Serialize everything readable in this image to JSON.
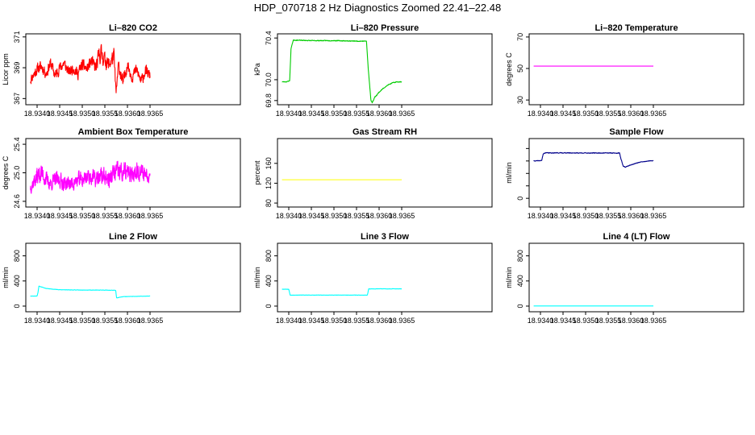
{
  "page_title": "HDP_070718  2 Hz Diagnostics Zoomed 22.41–22.48",
  "chart_data": [
    {
      "type": "line",
      "title": "Li–820 CO2",
      "ylabel": "Licor ppm",
      "color": "#ff0000",
      "xlim": [
        18.93375,
        18.9385
      ],
      "ylim": [
        366.6,
        371.2
      ],
      "x_ticks": [
        18.934,
        18.9345,
        18.935,
        18.9355,
        18.936,
        18.9365
      ],
      "x_tick_labels": [
        "18.9340",
        "18.9345",
        "18.9350",
        "18.9355",
        "18.9360",
        "18.9365"
      ],
      "y_ticks": [
        367,
        369,
        371
      ],
      "y_tick_labels": [
        "367",
        "369",
        "371"
      ],
      "series": [
        {
          "name": "CO2",
          "x": [
            18.93385,
            18.934,
            18.9341,
            18.9342,
            18.9343,
            18.9344,
            18.9345,
            18.9346,
            18.9347,
            18.9348,
            18.9349,
            18.935,
            18.9351,
            18.9352,
            18.9353,
            18.9354,
            18.9355,
            18.9356,
            18.9357,
            18.93575,
            18.9358,
            18.9359,
            18.936,
            18.9361,
            18.9362,
            18.9363,
            18.9364,
            18.9365
          ],
          "values": [
            368.2,
            368.9,
            369.1,
            368.6,
            369.3,
            368.5,
            369.0,
            369.3,
            368.7,
            369.0,
            368.6,
            369.2,
            368.9,
            369.4,
            369.0,
            370.0,
            369.5,
            369.2,
            369.8,
            367.3,
            369.2,
            368.0,
            369.2,
            368.4,
            368.9,
            368.1,
            368.8,
            368.5
          ],
          "amplitude": [
            0.45,
            0.5,
            0.5,
            0.45,
            0.5,
            0.5,
            0.5,
            0.5,
            0.45,
            0.5,
            0.5,
            0.5,
            0.5,
            0.55,
            0.6,
            0.9,
            0.7,
            0.6,
            0.7,
            0.4,
            0.5,
            0.6,
            0.5,
            0.5,
            0.5,
            0.5,
            0.5,
            0.4
          ],
          "noise_seed": 11
        }
      ]
    },
    {
      "type": "line",
      "title": "Li–820 Pressure",
      "ylabel": "kPa",
      "color": "#00cc00",
      "xlim": [
        18.93375,
        18.9385
      ],
      "ylim": [
        69.76,
        70.44
      ],
      "x_ticks": [
        18.934,
        18.9345,
        18.935,
        18.9355,
        18.936,
        18.9365
      ],
      "x_tick_labels": [
        "18.9340",
        "18.9345",
        "18.9350",
        "18.9355",
        "18.9360",
        "18.9365"
      ],
      "y_ticks": [
        69.8,
        70.0,
        70.4
      ],
      "y_tick_labels": [
        "69.8",
        "70.0",
        "70.4"
      ],
      "series": [
        {
          "name": "Pressure",
          "x": [
            18.93385,
            18.93395,
            18.93402,
            18.93405,
            18.9341,
            18.9345,
            18.935,
            18.9355,
            18.93572,
            18.93576,
            18.93582,
            18.93585,
            18.9359,
            18.936,
            18.9361,
            18.9362,
            18.9363,
            18.9364,
            18.9365
          ],
          "values": [
            69.98,
            69.98,
            69.99,
            70.3,
            70.38,
            70.375,
            70.375,
            70.37,
            70.37,
            70.1,
            69.8,
            69.78,
            69.83,
            69.88,
            69.92,
            69.95,
            69.97,
            69.98,
            69.98
          ],
          "amplitude": [
            0.004,
            0.004,
            0.004,
            0.004,
            0.005,
            0.005,
            0.005,
            0.005,
            0.005,
            0.006,
            0.006,
            0.006,
            0.006,
            0.006,
            0.005,
            0.005,
            0.005,
            0.005,
            0.005
          ],
          "noise_seed": 23
        }
      ]
    },
    {
      "type": "line",
      "title": "Li–820 Temperature",
      "ylabel": "degrees C",
      "color": "#ff00ff",
      "xlim": [
        18.93375,
        18.9385
      ],
      "ylim": [
        27,
        72
      ],
      "x_ticks": [
        18.934,
        18.9345,
        18.935,
        18.9355,
        18.936,
        18.9365
      ],
      "x_tick_labels": [
        "18.9340",
        "18.9345",
        "18.9350",
        "18.9355",
        "18.9360",
        "18.9365"
      ],
      "y_ticks": [
        30,
        50,
        70
      ],
      "y_tick_labels": [
        "30",
        "50",
        "70"
      ],
      "series": [
        {
          "name": "Temperature",
          "x": [
            18.93385,
            18.9365
          ],
          "values": [
            51.5,
            51.5
          ],
          "amplitude": [
            0,
            0
          ],
          "noise_seed": 1
        }
      ]
    },
    {
      "type": "line",
      "title": "Ambient Box Temperature",
      "ylabel": "degrees C",
      "color": "#ff00ff",
      "xlim": [
        18.93375,
        18.9385
      ],
      "ylim": [
        24.52,
        25.48
      ],
      "x_ticks": [
        18.934,
        18.9345,
        18.935,
        18.9355,
        18.936,
        18.9365
      ],
      "x_tick_labels": [
        "18.9340",
        "18.9345",
        "18.9350",
        "18.9355",
        "18.9360",
        "18.9365"
      ],
      "y_ticks": [
        24.6,
        25.0,
        25.4
      ],
      "y_tick_labels": [
        "24.6",
        "25.0",
        "25.4"
      ],
      "series": [
        {
          "name": "Ambient",
          "x": [
            18.93385,
            18.934,
            18.9341,
            18.9342,
            18.9343,
            18.9344,
            18.9345,
            18.9346,
            18.9347,
            18.9348,
            18.9349,
            18.935,
            18.9351,
            18.9352,
            18.9353,
            18.9354,
            18.9355,
            18.9356,
            18.9357,
            18.9358,
            18.9359,
            18.936,
            18.9361,
            18.9362,
            18.9363,
            18.9364,
            18.9365
          ],
          "values": [
            24.8,
            24.95,
            25.0,
            24.9,
            24.85,
            24.9,
            24.9,
            24.85,
            24.85,
            24.85,
            24.9,
            24.9,
            24.95,
            24.95,
            24.9,
            24.95,
            24.95,
            24.9,
            25.0,
            25.0,
            25.0,
            25.0,
            24.95,
            25.05,
            25.0,
            25.0,
            24.95
          ],
          "amplitude": [
            0.12,
            0.18,
            0.18,
            0.16,
            0.14,
            0.15,
            0.15,
            0.14,
            0.14,
            0.14,
            0.15,
            0.15,
            0.16,
            0.16,
            0.15,
            0.17,
            0.16,
            0.16,
            0.2,
            0.22,
            0.22,
            0.18,
            0.16,
            0.18,
            0.16,
            0.15,
            0.12
          ],
          "noise_seed": 37
        }
      ]
    },
    {
      "type": "line",
      "title": "Gas Stream RH",
      "ylabel": "percent",
      "color": "#ffff00",
      "xlim": [
        18.93375,
        18.9385
      ],
      "ylim": [
        72,
        210
      ],
      "x_ticks": [
        18.934,
        18.9345,
        18.935,
        18.9355,
        18.936,
        18.9365
      ],
      "x_tick_labels": [
        "18.9340",
        "18.9345",
        "18.9350",
        "18.9355",
        "18.9360",
        "18.9365"
      ],
      "y_ticks": [
        80,
        120,
        160
      ],
      "y_tick_labels": [
        "80",
        "120",
        "160"
      ],
      "series": [
        {
          "name": "RH",
          "x": [
            18.93385,
            18.9365
          ],
          "values": [
            127,
            127
          ],
          "amplitude": [
            0,
            0
          ],
          "noise_seed": 2
        }
      ]
    },
    {
      "type": "line",
      "title": "Sample Flow",
      "ylabel": "ml/min",
      "color": "#00008b",
      "xlim": [
        18.93375,
        18.9385
      ],
      "ylim": [
        -70,
        480
      ],
      "x_ticks": [
        18.934,
        18.9345,
        18.935,
        18.9355,
        18.936,
        18.9365
      ],
      "x_tick_labels": [
        "18.9340",
        "18.9345",
        "18.9350",
        "18.9355",
        "18.9360",
        "18.9365"
      ],
      "y_ticks": [
        0,
        100,
        200,
        300,
        400
      ],
      "y_tick_labels": [
        "0",
        "",
        "",
        "",
        ""
      ],
      "series": [
        {
          "name": "Sample Flow",
          "x": [
            18.93385,
            18.93398,
            18.93403,
            18.93406,
            18.9341,
            18.9345,
            18.935,
            18.9355,
            18.93575,
            18.93578,
            18.93583,
            18.93588,
            18.9359,
            18.936,
            18.9361,
            18.9362,
            18.9363,
            18.9364,
            18.9365
          ],
          "values": [
            300,
            302,
            305,
            355,
            365,
            365,
            364,
            364,
            364,
            320,
            260,
            250,
            255,
            268,
            280,
            290,
            295,
            300,
            302
          ],
          "amplitude": [
            3,
            3,
            3,
            3,
            4,
            4,
            4,
            4,
            4,
            4,
            4,
            4,
            3,
            3,
            3,
            3,
            3,
            3,
            3
          ],
          "noise_seed": 41
        }
      ]
    },
    {
      "type": "line",
      "title": "Line 2 Flow",
      "ylabel": "ml/min",
      "color": "#00ffff",
      "xlim": [
        18.93375,
        18.9385
      ],
      "ylim": [
        -90,
        1000
      ],
      "x_ticks": [
        18.934,
        18.9345,
        18.935,
        18.9355,
        18.936,
        18.9365
      ],
      "x_tick_labels": [
        "18.9340",
        "18.9345",
        "18.9350",
        "18.9355",
        "18.9360",
        "18.9365"
      ],
      "y_ticks": [
        0,
        400,
        800
      ],
      "y_tick_labels": [
        "0",
        "400",
        "800"
      ],
      "series": [
        {
          "name": "Line 2",
          "x": [
            18.93385,
            18.934,
            18.93402,
            18.93404,
            18.9342,
            18.9345,
            18.935,
            18.9355,
            18.93574,
            18.93576,
            18.9359,
            18.9365
          ],
          "values": [
            160,
            160,
            220,
            320,
            280,
            260,
            255,
            255,
            250,
            130,
            150,
            160
          ],
          "amplitude": [
            3,
            3,
            4,
            5,
            4,
            4,
            4,
            4,
            4,
            3,
            3,
            3
          ],
          "noise_seed": 53
        }
      ]
    },
    {
      "type": "line",
      "title": "Line 3 Flow",
      "ylabel": "ml/min",
      "color": "#00ffff",
      "xlim": [
        18.93375,
        18.9385
      ],
      "ylim": [
        -90,
        1000
      ],
      "x_ticks": [
        18.934,
        18.9345,
        18.935,
        18.9355,
        18.936,
        18.9365
      ],
      "x_tick_labels": [
        "18.9340",
        "18.9345",
        "18.9350",
        "18.9355",
        "18.9360",
        "18.9365"
      ],
      "y_ticks": [
        0,
        400,
        800
      ],
      "y_tick_labels": [
        "0",
        "400",
        "800"
      ],
      "series": [
        {
          "name": "Line 3",
          "x": [
            18.93385,
            18.934,
            18.93403,
            18.9345,
            18.935,
            18.9355,
            18.93574,
            18.93577,
            18.936,
            18.9365
          ],
          "values": [
            270,
            268,
            175,
            175,
            175,
            175,
            175,
            275,
            275,
            275
          ],
          "amplitude": [
            4,
            4,
            3,
            3,
            3,
            3,
            3,
            4,
            4,
            4
          ],
          "noise_seed": 67
        }
      ]
    },
    {
      "type": "line",
      "title": "Line 4 (LT) Flow",
      "ylabel": "ml/min",
      "color": "#00ffff",
      "xlim": [
        18.93375,
        18.9385
      ],
      "ylim": [
        -90,
        1000
      ],
      "x_ticks": [
        18.934,
        18.9345,
        18.935,
        18.9355,
        18.936,
        18.9365
      ],
      "x_tick_labels": [
        "18.9340",
        "18.9345",
        "18.9350",
        "18.9355",
        "18.9360",
        "18.9365"
      ],
      "y_ticks": [
        0,
        400,
        800
      ],
      "y_tick_labels": [
        "0",
        "400",
        "800"
      ],
      "series": [
        {
          "name": "Line 4",
          "x": [
            18.93385,
            18.9365
          ],
          "values": [
            2,
            2
          ],
          "amplitude": [
            0,
            0
          ],
          "noise_seed": 3
        }
      ]
    }
  ]
}
